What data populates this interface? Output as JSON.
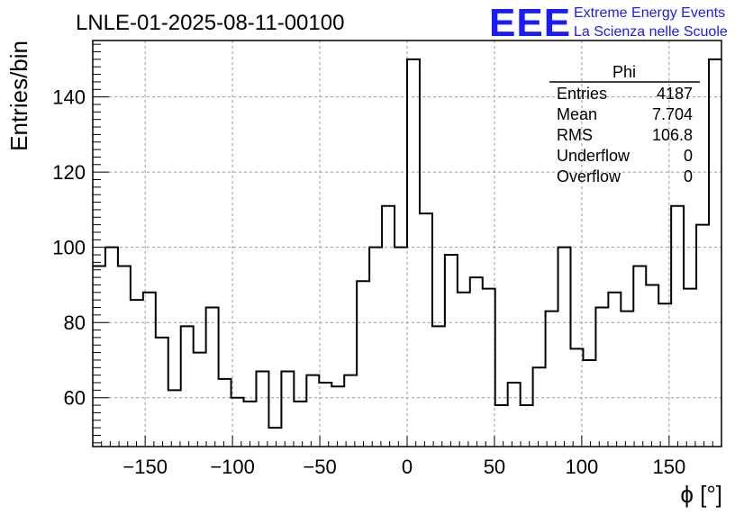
{
  "chart_data": {
    "type": "bar",
    "style": "step-histogram",
    "title": "LNLE-01-2025-08-11-00100",
    "xlabel": "ϕ [°]",
    "ylabel": "Entries/bin",
    "xlim": [
      -180,
      180
    ],
    "ylim": [
      47,
      155
    ],
    "bin_width": 7.2,
    "xticks": [
      -150,
      -100,
      -50,
      0,
      50,
      100,
      150
    ],
    "xtick_labels": [
      "−150",
      "−100",
      "−50",
      "0",
      "50",
      "100",
      "150"
    ],
    "yticks": [
      60,
      80,
      100,
      120,
      140
    ],
    "ytick_labels": [
      "60",
      "80",
      "100",
      "120",
      "140"
    ],
    "grid": true,
    "values": [
      95,
      100,
      95,
      86,
      88,
      76,
      62,
      79,
      72,
      84,
      65,
      60,
      59,
      67,
      52,
      67,
      59,
      66,
      64,
      63,
      66,
      91,
      100,
      111,
      100,
      150,
      109,
      79,
      98,
      88,
      92,
      89,
      58,
      64,
      58,
      68,
      83,
      100,
      73,
      70,
      84,
      88,
      83,
      95,
      90,
      85,
      111,
      89,
      106,
      150
    ],
    "line_color": "#000000",
    "stats_box": {
      "title": "Phi",
      "rows": [
        {
          "label": "Entries",
          "value": "4187"
        },
        {
          "label": "Mean",
          "value": "7.704"
        },
        {
          "label": "RMS",
          "value": "106.8"
        },
        {
          "label": "Underflow",
          "value": "0"
        },
        {
          "label": "Overflow",
          "value": "0"
        }
      ]
    },
    "logo": {
      "mark": "EEE",
      "line1": "Extreme Energy Events",
      "line2": "La Scienza nelle Scuole",
      "color": "#1a1aff"
    }
  }
}
